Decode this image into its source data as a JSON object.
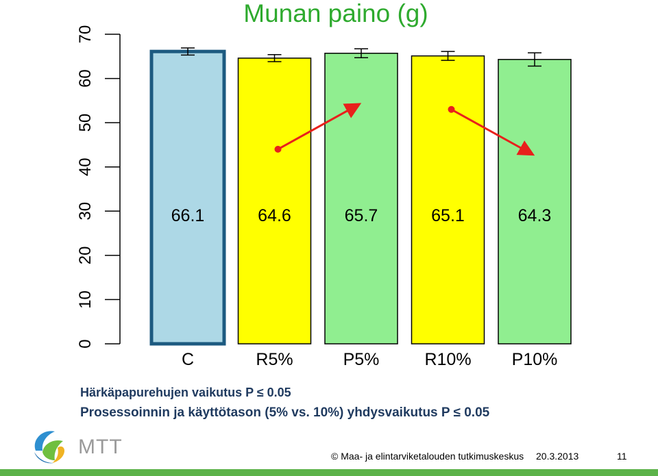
{
  "title": "Munan paino (g)",
  "notes": {
    "line1": "Härkäpapurehujen vaikutus P ≤ 0.05",
    "line2": "Prosessoinnin ja käyttötason (5% vs. 10%) yhdysvaikutus P ≤ 0.05"
  },
  "logo": {
    "text": "MTT",
    "icon": "mtt-swoosh-logo"
  },
  "footer": {
    "copyright": "© Maa- ja elintarviketalouden tutkimuskeskus",
    "date": "20.3.2013",
    "page": "11"
  },
  "chart_data": {
    "type": "bar",
    "categories": [
      "C",
      "R5%",
      "P5%",
      "R10%",
      "P10%"
    ],
    "values": [
      66.1,
      64.6,
      65.7,
      65.1,
      64.3
    ],
    "value_labels": [
      "66.1",
      "64.6",
      "65.7",
      "65.1",
      "64.3"
    ],
    "error": [
      0.8,
      0.8,
      1.0,
      1.0,
      1.5
    ],
    "colors": [
      "#add8e6",
      "#ffff00",
      "#90ee90",
      "#ffff00",
      "#90ee90"
    ],
    "highlight_border": "#1c5a80",
    "ylim": [
      0,
      70
    ],
    "yticks": [
      0,
      10,
      20,
      30,
      40,
      50,
      60,
      70
    ],
    "ylabel": "",
    "xlabel": "",
    "arrows": [
      {
        "from_category": "R5%",
        "to_category": "P5%",
        "from_value": 44,
        "to_value": 54
      },
      {
        "from_category": "R10%",
        "to_category": "P10%",
        "from_value": 53,
        "to_value": 43
      }
    ],
    "arrow_color": "#e8201c"
  },
  "colors": {
    "title": "#2eaa2e",
    "notes": "#1f3a5f",
    "footer_bar": "#5cb34a"
  }
}
